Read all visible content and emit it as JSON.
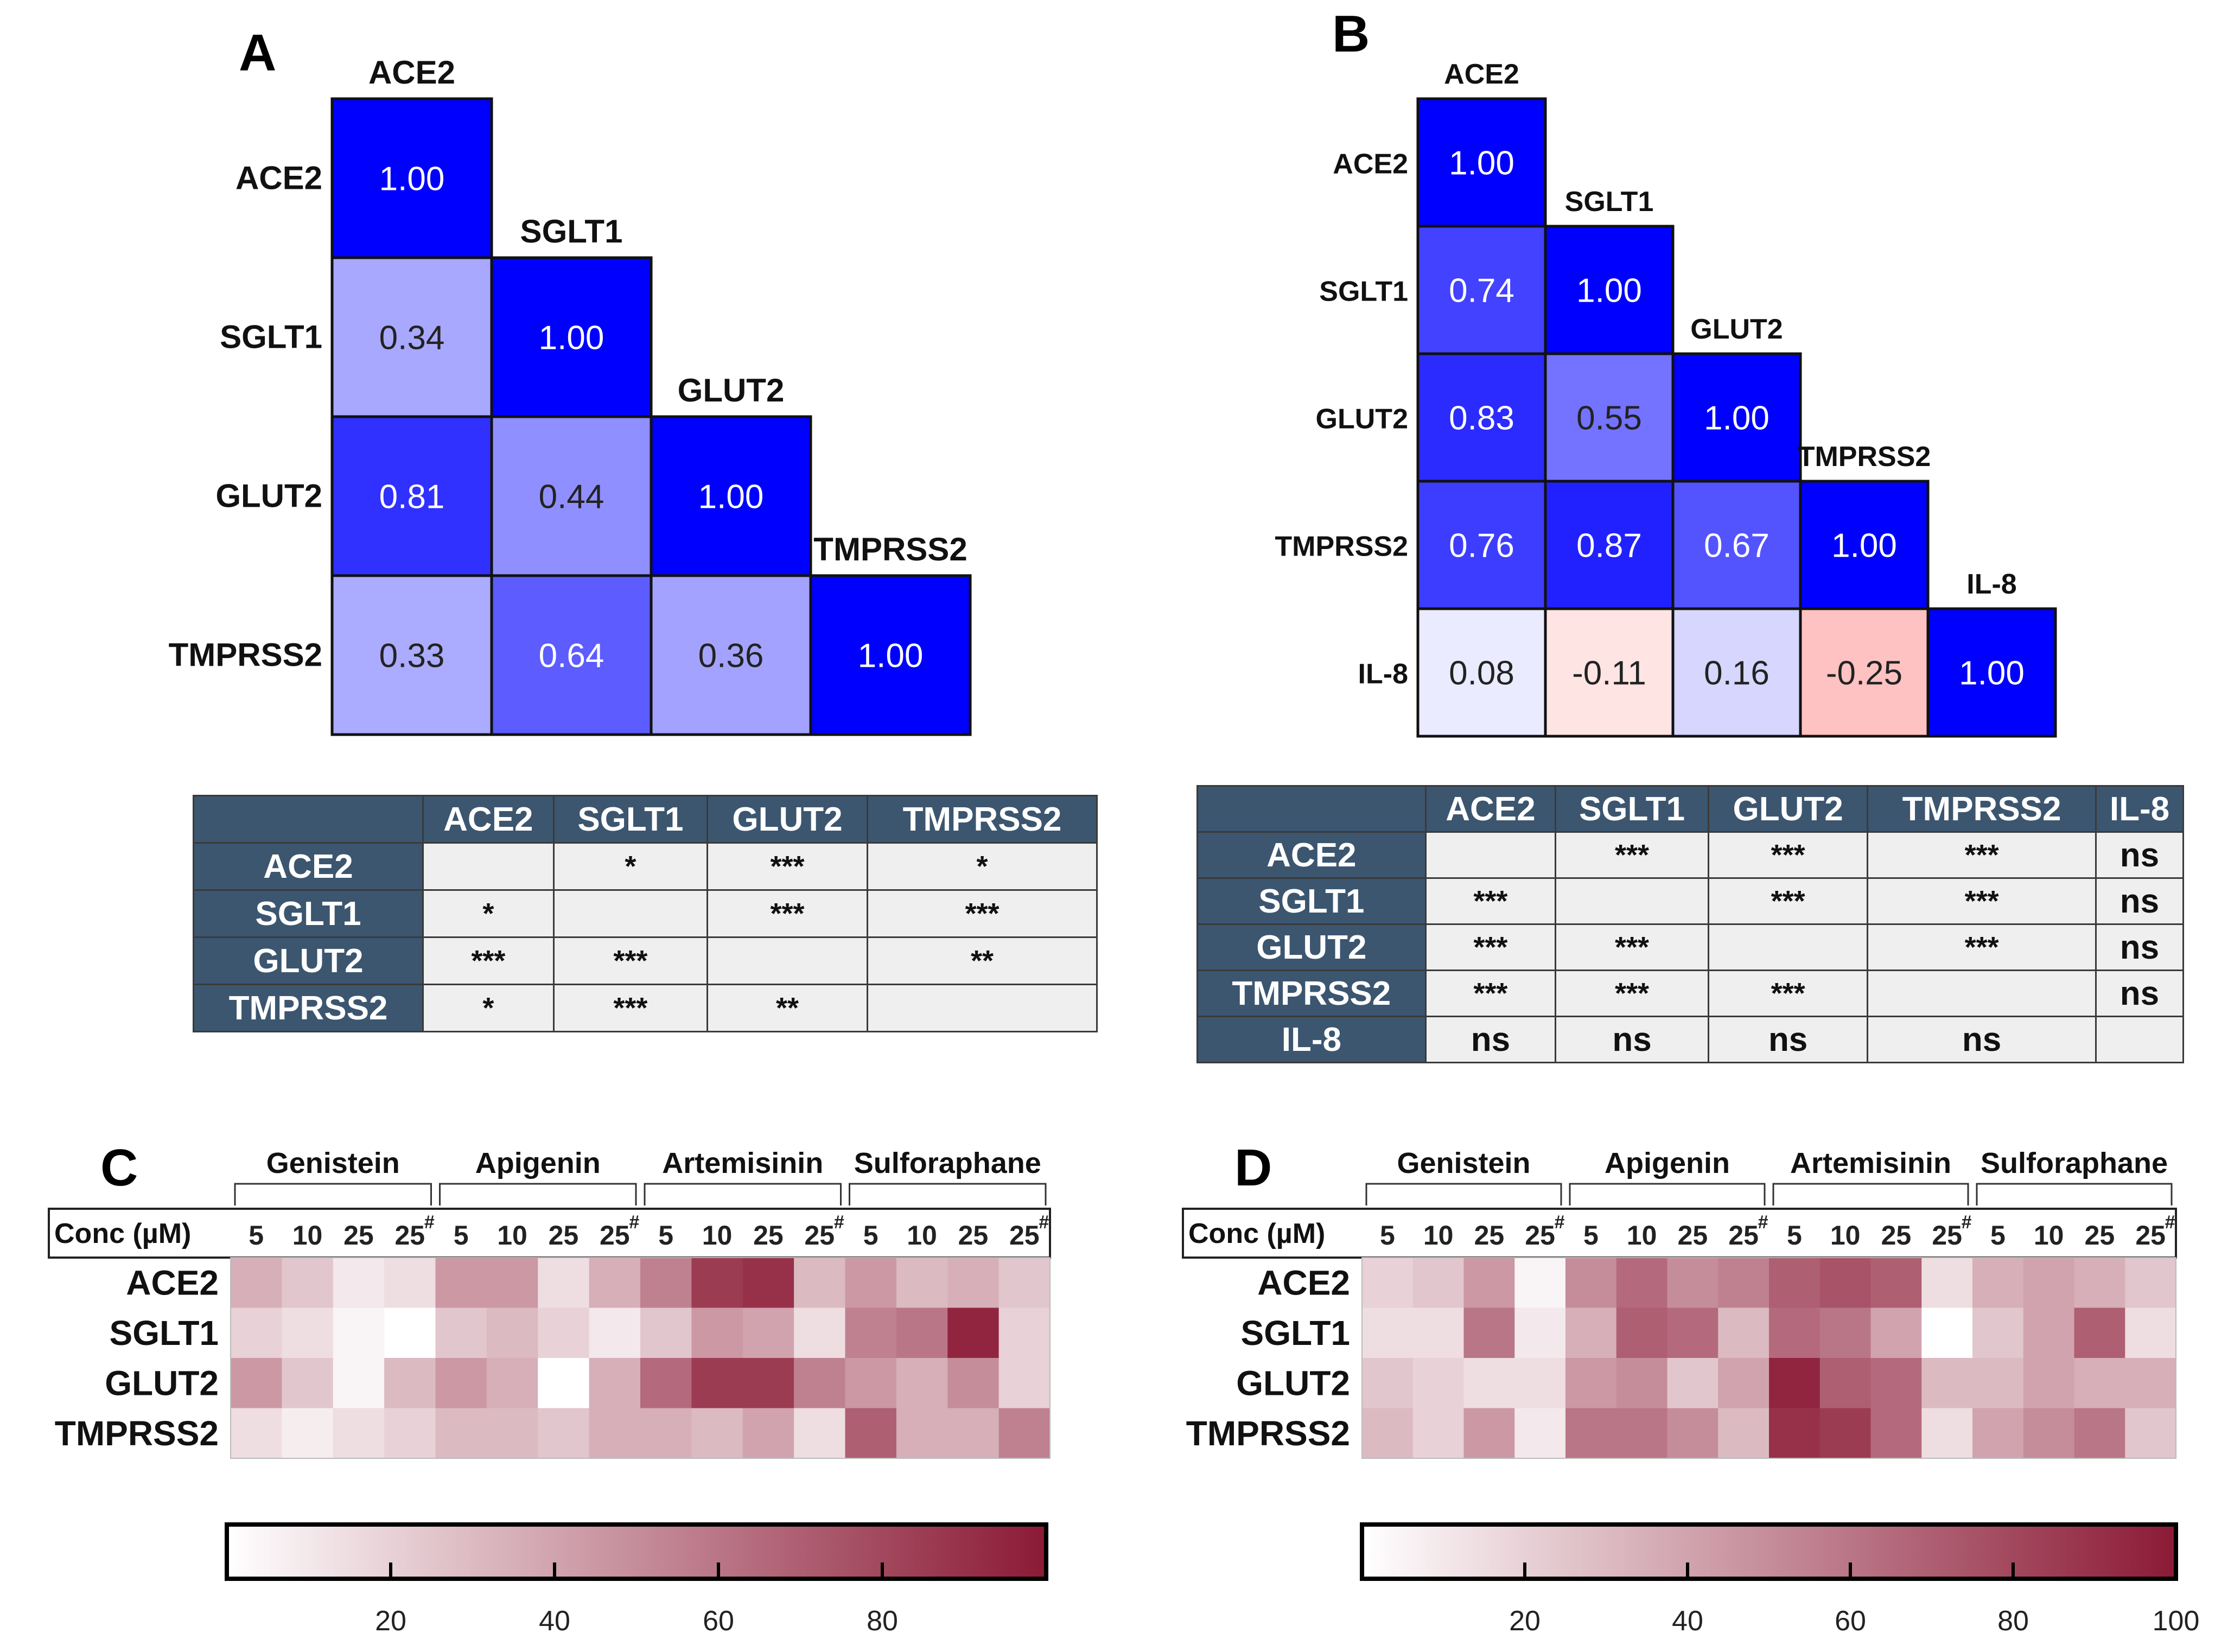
{
  "chart_data": [
    {
      "panel": "A",
      "type": "heatmap",
      "title": "",
      "variables": [
        "ACE2",
        "SGLT1",
        "GLUT2",
        "TMPRSS2"
      ],
      "lower_triangle_values": [
        [
          1.0
        ],
        [
          0.34,
          1.0
        ],
        [
          0.81,
          0.44,
          1.0
        ],
        [
          0.33,
          0.64,
          0.36,
          1.0
        ]
      ],
      "labels": [
        [
          "1.00"
        ],
        [
          "0.34",
          "1.00"
        ],
        [
          "0.81",
          "0.44",
          "1.00"
        ],
        [
          "0.33",
          "0.64",
          "0.36",
          "1.00"
        ]
      ],
      "significance_table": {
        "headers": [
          "ACE2",
          "SGLT1",
          "GLUT2",
          "TMPRSS2"
        ],
        "rows": [
          {
            "label": "ACE2",
            "cells": [
              "",
              "*",
              "***",
              "*"
            ]
          },
          {
            "label": "SGLT1",
            "cells": [
              "*",
              "",
              "***",
              "***"
            ]
          },
          {
            "label": "GLUT2",
            "cells": [
              "***",
              "***",
              "",
              "**"
            ]
          },
          {
            "label": "TMPRSS2",
            "cells": [
              "*",
              "***",
              "**",
              ""
            ]
          }
        ]
      }
    },
    {
      "panel": "B",
      "type": "heatmap",
      "title": "",
      "variables": [
        "ACE2",
        "SGLT1",
        "GLUT2",
        "TMPRSS2",
        "IL-8"
      ],
      "lower_triangle_values": [
        [
          1.0
        ],
        [
          0.74,
          1.0
        ],
        [
          0.83,
          0.55,
          1.0
        ],
        [
          0.76,
          0.87,
          0.67,
          1.0
        ],
        [
          0.08,
          -0.11,
          0.16,
          -0.25,
          1.0
        ]
      ],
      "labels": [
        [
          "1.00"
        ],
        [
          "0.74",
          "1.00"
        ],
        [
          "0.83",
          "0.55",
          "1.00"
        ],
        [
          "0.76",
          "0.87",
          "0.67",
          "1.00"
        ],
        [
          "0.08",
          "-0.11",
          "0.16",
          "-0.25",
          "1.00"
        ]
      ],
      "significance_table": {
        "headers": [
          "ACE2",
          "SGLT1",
          "GLUT2",
          "TMPRSS2",
          "IL-8"
        ],
        "rows": [
          {
            "label": "ACE2",
            "cells": [
              "",
              "***",
              "***",
              "***",
              "ns"
            ]
          },
          {
            "label": "SGLT1",
            "cells": [
              "***",
              "",
              "***",
              "***",
              "ns"
            ]
          },
          {
            "label": "GLUT2",
            "cells": [
              "***",
              "***",
              "",
              "***",
              "ns"
            ]
          },
          {
            "label": "TMPRSS2",
            "cells": [
              "***",
              "***",
              "***",
              "",
              "ns"
            ]
          },
          {
            "label": "IL-8",
            "cells": [
              "ns",
              "ns",
              "ns",
              "ns",
              ""
            ]
          }
        ]
      }
    },
    {
      "panel": "C",
      "type": "heatmap",
      "compounds": [
        "Genistein",
        "Apigenin",
        "Artemisinin",
        "Sulforaphane"
      ],
      "conc_label": "Conc (µM)",
      "conc_values": [
        "5",
        "10",
        "25",
        "25"
      ],
      "conc_marker": "#",
      "genes": [
        "ACE2",
        "SGLT1",
        "GLUT2",
        "TMPRSS2"
      ],
      "values": [
        [
          35,
          25,
          10,
          15,
          45,
          45,
          15,
          35,
          55,
          85,
          90,
          30,
          45,
          30,
          35,
          25
        ],
        [
          20,
          15,
          5,
          0,
          25,
          30,
          20,
          10,
          25,
          45,
          40,
          15,
          55,
          60,
          95,
          20
        ],
        [
          45,
          25,
          5,
          30,
          45,
          35,
          0,
          35,
          65,
          85,
          85,
          55,
          45,
          35,
          50,
          20
        ],
        [
          15,
          8,
          15,
          20,
          30,
          30,
          25,
          35,
          35,
          30,
          40,
          15,
          70,
          35,
          35,
          55
        ]
      ],
      "colorbar": {
        "min": 0,
        "max": 100,
        "ticks": [
          "20",
          "40",
          "60",
          "80"
        ]
      }
    },
    {
      "panel": "D",
      "type": "heatmap",
      "compounds": [
        "Genistein",
        "Apigenin",
        "Artemisinin",
        "Sulforaphane"
      ],
      "conc_label": "Conc (µM)",
      "conc_values": [
        "5",
        "10",
        "25",
        "25"
      ],
      "conc_marker": "#",
      "genes": [
        "ACE2",
        "SGLT1",
        "GLUT2",
        "TMPRSS2"
      ],
      "values": [
        [
          20,
          25,
          45,
          5,
          50,
          65,
          50,
          55,
          70,
          75,
          70,
          15,
          35,
          40,
          35,
          25
        ],
        [
          15,
          15,
          60,
          10,
          35,
          70,
          65,
          30,
          65,
          60,
          40,
          0,
          25,
          40,
          70,
          15
        ],
        [
          25,
          20,
          15,
          15,
          45,
          50,
          25,
          40,
          95,
          70,
          65,
          30,
          30,
          40,
          35,
          35
        ],
        [
          30,
          20,
          45,
          10,
          60,
          60,
          50,
          30,
          90,
          85,
          65,
          15,
          40,
          50,
          60,
          25
        ]
      ],
      "colorbar": {
        "min": 0,
        "max": 100,
        "ticks": [
          "20",
          "40",
          "60",
          "80",
          "100"
        ]
      }
    }
  ]
}
